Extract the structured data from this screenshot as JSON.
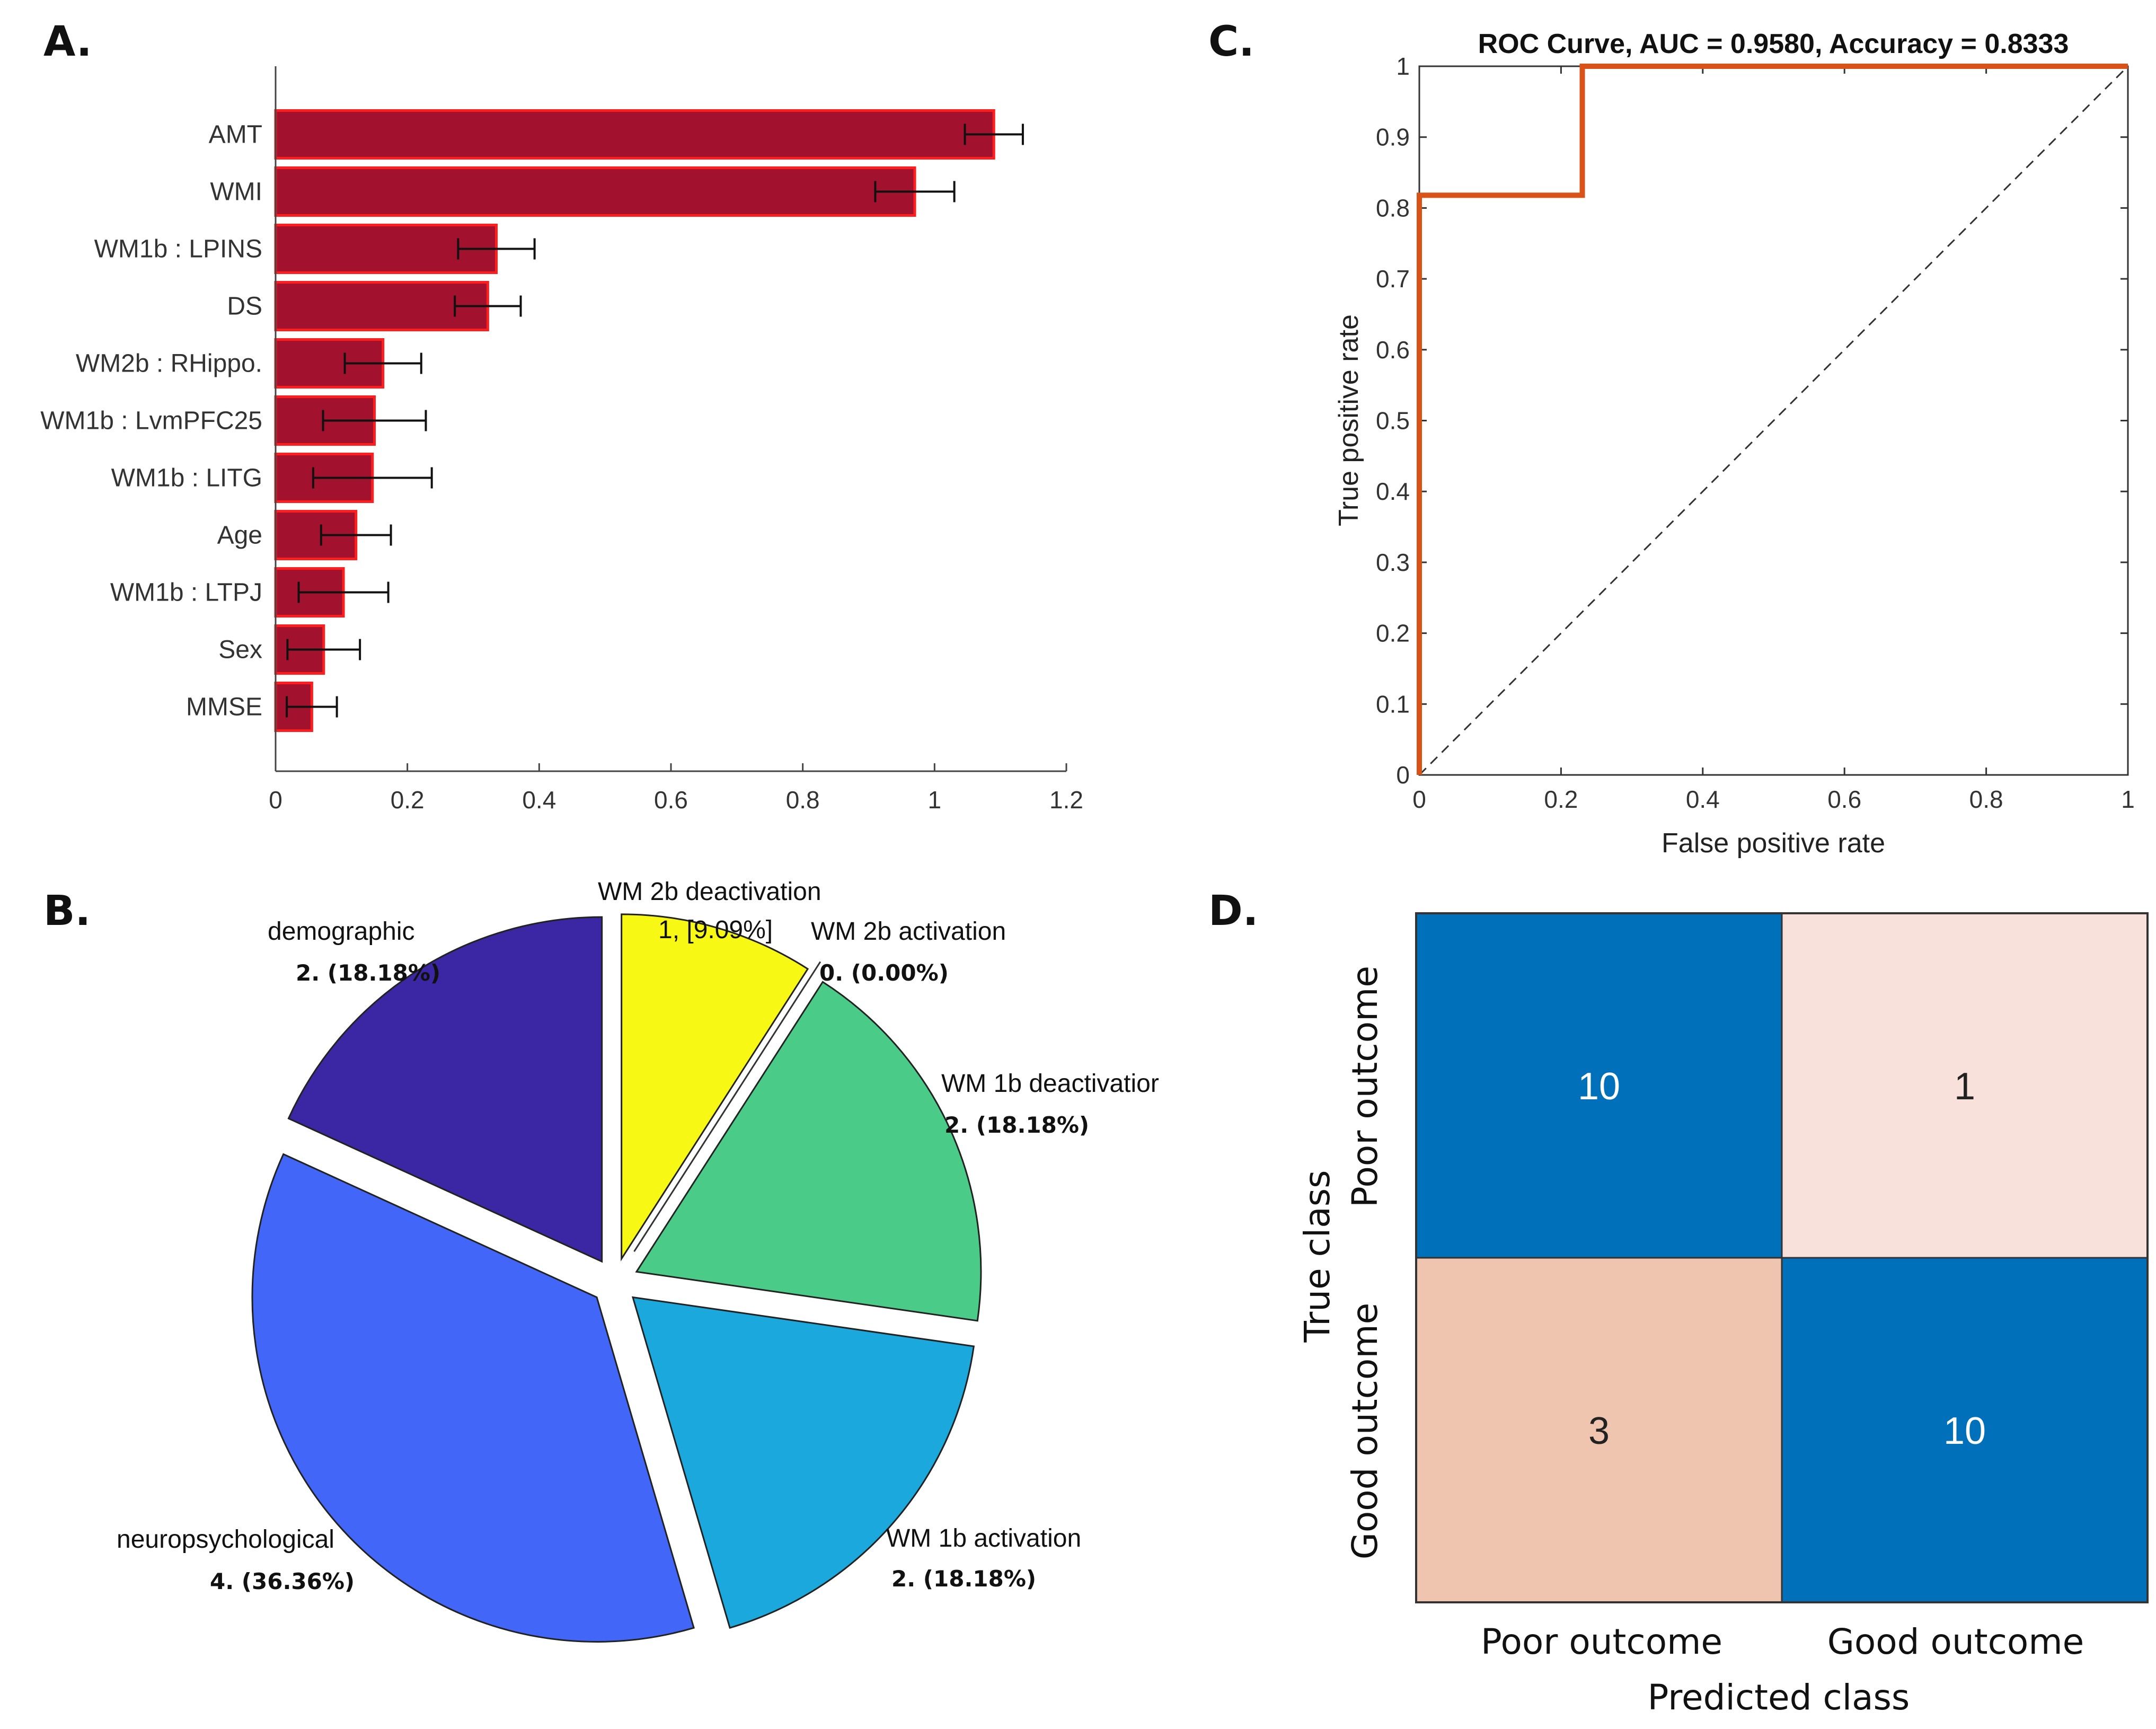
{
  "panels": {
    "a": "A.",
    "b": "B.",
    "c": "C.",
    "d": "D."
  },
  "chart_data": [
    {
      "id": "A",
      "type": "bar",
      "orientation": "horizontal",
      "categories": [
        "AMT",
        "WMI",
        "WM1b : LPINS",
        "DS",
        "WM2b : RHippo.",
        "WM1b : LvmPFC25",
        "WM1b : LITG",
        "Age",
        "WM1b : LTPJ",
        "Sex",
        "MMSE"
      ],
      "values": [
        1.09,
        0.97,
        0.335,
        0.322,
        0.163,
        0.15,
        0.147,
        0.122,
        0.103,
        0.073,
        0.055
      ],
      "errors": [
        0.044,
        0.06,
        0.058,
        0.05,
        0.058,
        0.078,
        0.09,
        0.053,
        0.068,
        0.055,
        0.038
      ],
      "xlim": [
        0,
        1.2
      ],
      "xticks": [
        "0",
        "0.2",
        "0.4",
        "0.6",
        "0.8",
        "1",
        "1.2"
      ],
      "bar_color": "#A2122E",
      "edge_color": "#FF1E1E"
    },
    {
      "id": "B",
      "type": "pie",
      "slices": [
        {
          "name": "WM 2b deactivation",
          "value_label": "1, [9.09%]",
          "value": 1,
          "color": "#F8F815"
        },
        {
          "name": "WM 2b activation",
          "value_label": "0. (0.00%)",
          "value": 0,
          "color": "#F8F815"
        },
        {
          "name": "WM 1b deactivatior",
          "value_label": "2. (18.18%)",
          "value": 2,
          "color": "#4ACB88"
        },
        {
          "name": "WM 1b activation",
          "value_label": "2. (18.18%)",
          "value": 2,
          "color": "#1BA8DD"
        },
        {
          "name": "neuropsychological",
          "value_label": "4. (36.36%)",
          "value": 4,
          "color": "#4166F8"
        },
        {
          "name": "demographic",
          "value_label": "2. (18.18%)",
          "value": 2,
          "color": "#3B27A4"
        }
      ]
    },
    {
      "id": "C",
      "type": "line",
      "title": "ROC Curve, AUC = 0.9580, Accuracy = 0.8333",
      "xlabel": "False positive rate",
      "ylabel": "True positive rate",
      "xlim": [
        0,
        1
      ],
      "ylim": [
        0,
        1
      ],
      "xticks": [
        "0",
        "0.2",
        "0.4",
        "0.6",
        "0.8",
        "1"
      ],
      "yticks": [
        "0",
        "0.1",
        "0.2",
        "0.3",
        "0.4",
        "0.5",
        "0.6",
        "0.7",
        "0.8",
        "0.9",
        "1"
      ],
      "series": [
        {
          "name": "ROC",
          "x": [
            0,
            0,
            0.23,
            0.23,
            1
          ],
          "y": [
            0,
            0.818,
            0.818,
            1,
            1
          ],
          "color": "#D95319"
        },
        {
          "name": "chance",
          "x": [
            0,
            1
          ],
          "y": [
            0,
            1
          ],
          "color": "#333333",
          "style": "dashed"
        }
      ]
    },
    {
      "id": "D",
      "type": "heatmap",
      "xlabel": "Predicted class",
      "ylabel": "True class",
      "classes": [
        "Poor outcome",
        "Good outcome"
      ],
      "matrix": [
        [
          10,
          1
        ],
        [
          3,
          10
        ]
      ],
      "colors": [
        [
          "#0070BB",
          "#F7E1DA"
        ],
        [
          "#F0C5AF",
          "#0070BB"
        ]
      ],
      "text_colors": [
        [
          "#FFFFFF",
          "#222222"
        ],
        [
          "#222222",
          "#FFFFFF"
        ]
      ]
    }
  ]
}
